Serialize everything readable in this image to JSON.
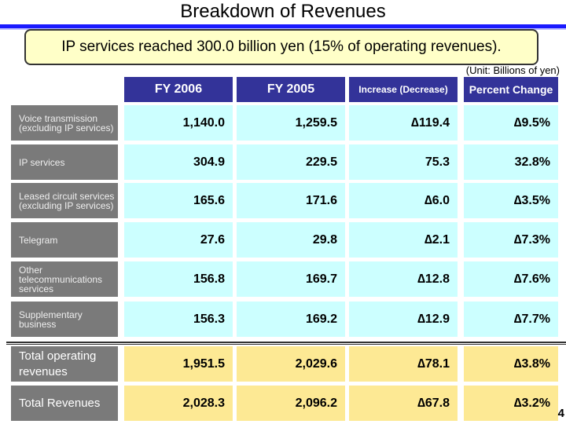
{
  "title": "Breakdown of  Revenues",
  "banner": "IP services reached 300.0 billion yen (15% of operating revenues).",
  "unit": "(Unit: Billions of yen)",
  "headers": [
    "FY 2006",
    "FY 2005",
    "Increase (Decrease)",
    "Percent Change"
  ],
  "rows": [
    {
      "label": "Voice transmission (excluding IP services)",
      "values": [
        "1,140.0",
        "1,259.5",
        "∆119.4",
        "∆9.5%"
      ]
    },
    {
      "label": "IP services",
      "values": [
        "304.9",
        "229.5",
        "75.3",
        "32.8%"
      ]
    },
    {
      "label": "Leased circuit services (excluding IP services)",
      "values": [
        "165.6",
        "171.6",
        "∆6.0",
        "∆3.5%"
      ]
    },
    {
      "label": "Telegram",
      "values": [
        "27.6",
        "29.8",
        "∆2.1",
        "∆7.3%"
      ]
    },
    {
      "label": "Other telecommunications services",
      "values": [
        "156.8",
        "169.7",
        "∆12.8",
        "∆7.6%"
      ]
    },
    {
      "label": "Supplementary business",
      "values": [
        "156.3",
        "169.2",
        "∆12.9",
        "∆7.7%"
      ]
    }
  ],
  "totals": [
    {
      "label": "Total operating revenues",
      "values": [
        "1,951.5",
        "2,029.6",
        "∆78.1",
        "∆3.8%"
      ]
    },
    {
      "label": "Total  Revenues",
      "values": [
        "2,028.3",
        "2,096.2",
        "∆67.8",
        "∆3.2%"
      ]
    }
  ],
  "page_number": "4",
  "colors": {
    "header": "#333399",
    "row": "#ccffff",
    "total": "#fde994",
    "label": "#7a7a7a",
    "rule": "#1a1aff"
  }
}
